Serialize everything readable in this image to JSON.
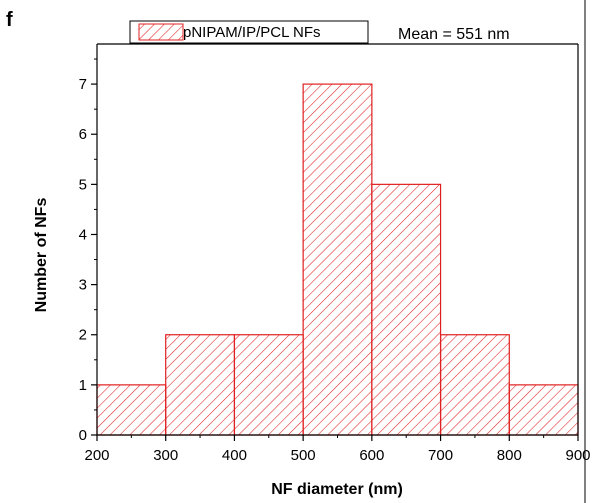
{
  "panel_label": "f",
  "annotation": "Mean = 551 nm",
  "colors": {
    "bar": "#e02020",
    "axis": "#000000",
    "background": "#ffffff"
  },
  "chart_data": {
    "type": "bar",
    "bin_edges": [
      200,
      300,
      400,
      500,
      600,
      700,
      800,
      900
    ],
    "values": [
      1,
      2,
      2,
      7,
      5,
      2,
      1
    ],
    "series": [
      {
        "name": "pNIPAM/IP/PCL NFs",
        "values": [
          1,
          2,
          2,
          7,
          5,
          2,
          1
        ]
      }
    ],
    "xlabel": "NF diameter (nm)",
    "ylabel": "Number of NFs",
    "xlim": [
      200,
      900
    ],
    "ylim": [
      0,
      7.8
    ],
    "xticks": [
      "200",
      "300",
      "400",
      "500",
      "600",
      "700",
      "800",
      "900"
    ],
    "yticks": [
      "0",
      "1",
      "2",
      "3",
      "4",
      "5",
      "6",
      "7"
    ],
    "legend": "top-left",
    "grid": false,
    "fill_pattern": "diagonal-hatch"
  }
}
